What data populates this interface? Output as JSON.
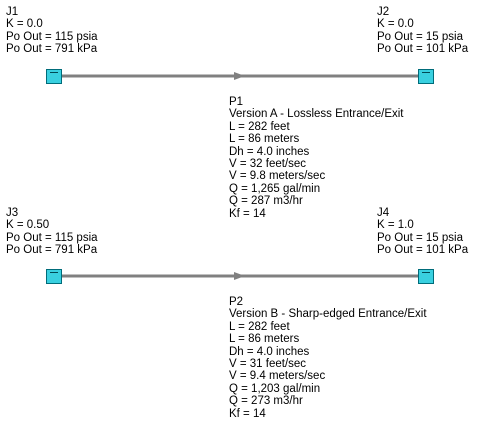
{
  "junctions": {
    "J1": {
      "name": "J1",
      "lines": [
        "K = 0.0",
        "Po Out = 115 psia",
        "Po Out = 791 kPa"
      ]
    },
    "J2": {
      "name": "J2",
      "lines": [
        "K = 0.0",
        "Po Out = 15 psia",
        "Po Out = 101 kPa"
      ]
    },
    "J3": {
      "name": "J3",
      "lines": [
        "K = 0.50",
        "Po Out = 115 psia",
        "Po Out = 791 kPa"
      ]
    },
    "J4": {
      "name": "J4",
      "lines": [
        "K = 1.0",
        "Po Out = 15 psia",
        "Po Out = 101 kPa"
      ]
    }
  },
  "pipes": {
    "P1": {
      "name": "P1",
      "lines": [
        "Version A - Lossless Entrance/Exit",
        "L = 282 feet",
        "L = 86 meters",
        "Dh = 4.0 inches",
        "V = 32 feet/sec",
        "V = 9.8 meters/sec",
        "Q = 1,265 gal/min",
        "Q = 287 m3/hr",
        "Kf = 14"
      ]
    },
    "P2": {
      "name": "P2",
      "lines": [
        "Version B - Sharp-edged Entrance/Exit",
        "L = 282 feet",
        "L = 86 meters",
        "Dh = 4.0 inches",
        "V = 31 feet/sec",
        "V = 9.4 meters/sec",
        "Q = 1,203 gal/min",
        "Q = 273 m3/hr",
        "Kf = 14"
      ]
    }
  },
  "colors": {
    "pipe": "#808080",
    "reservoir_fill": "#39d0e0",
    "reservoir_border": "#006c7a"
  }
}
